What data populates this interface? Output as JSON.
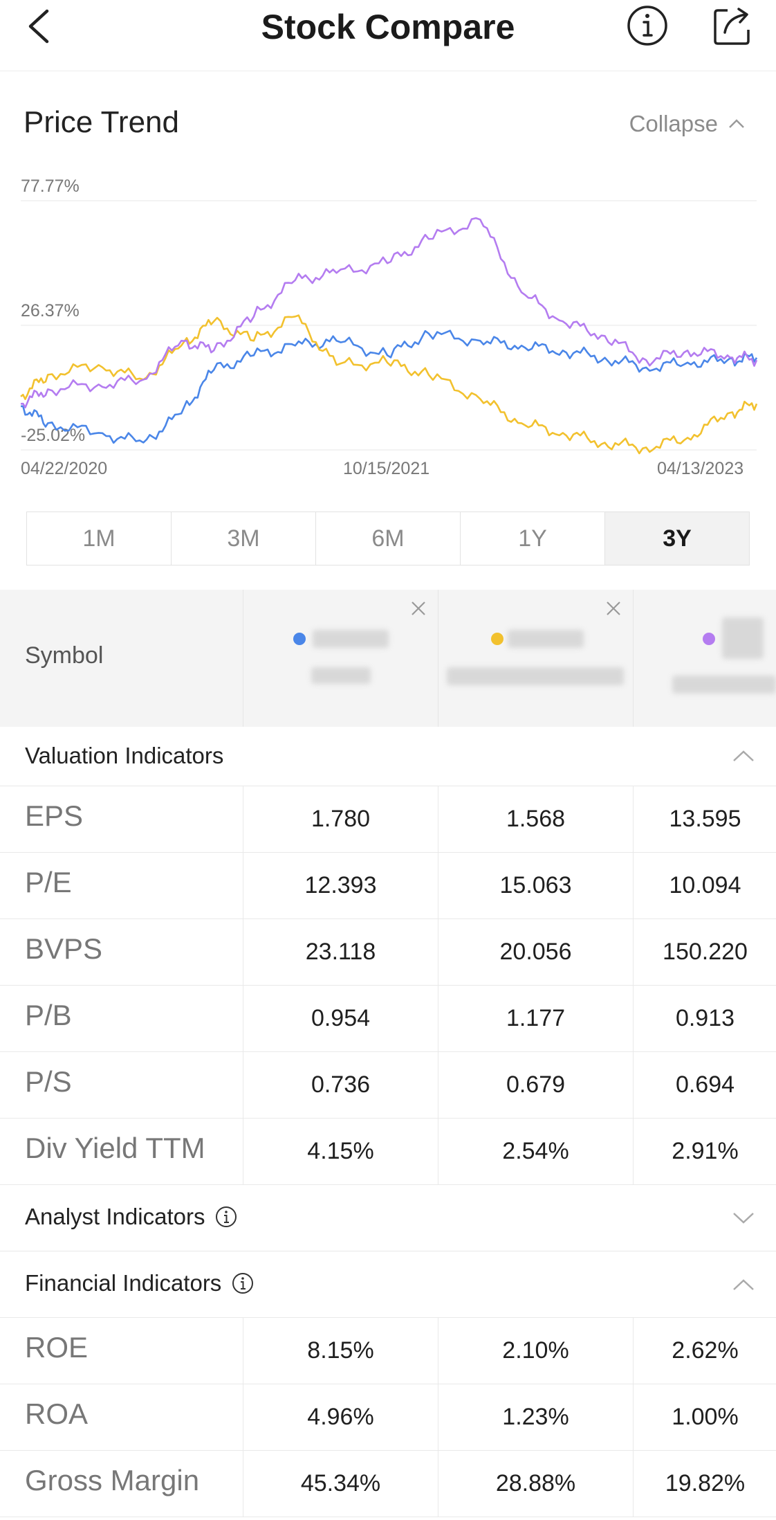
{
  "header": {
    "title": "Stock Compare",
    "back_icon": "back-arrow-icon",
    "info_icon": "info-icon",
    "share_icon": "share-icon"
  },
  "price_trend": {
    "title": "Price Trend",
    "collapse_label": "Collapse"
  },
  "chart_data": {
    "type": "line",
    "y_tick_labels": [
      "77.77%",
      "26.37%",
      "-25.02%"
    ],
    "y_ticks": [
      77.77,
      26.37,
      -25.02
    ],
    "x_tick_labels": [
      "04/22/2020",
      "10/15/2021",
      "04/13/2023"
    ],
    "x_range": [
      "04/22/2020",
      "04/13/2023"
    ],
    "ylim": [
      -25.02,
      77.77
    ],
    "grid": true,
    "series": [
      {
        "color": "#4a86e8",
        "x": [
          "04/22/2020",
          "06/01/2020",
          "08/15/2020",
          "10/20/2020",
          "12/15/2020",
          "02/01/2021",
          "04/01/2021",
          "06/01/2021",
          "08/01/2021",
          "10/15/2021",
          "12/15/2021",
          "03/01/2022",
          "05/01/2022",
          "07/01/2022",
          "09/01/2022",
          "11/01/2022",
          "01/01/2023",
          "03/01/2023",
          "04/13/2023"
        ],
        "values": [
          -7,
          -14,
          -18,
          -22,
          -10,
          8,
          14,
          18,
          20,
          14,
          23,
          20,
          18,
          16,
          13,
          9,
          11,
          12,
          13
        ]
      },
      {
        "color": "#f2c12e",
        "x": [
          "04/22/2020",
          "06/01/2020",
          "08/15/2020",
          "10/20/2020",
          "12/15/2020",
          "02/01/2021",
          "04/01/2021",
          "06/01/2021",
          "08/01/2021",
          "10/15/2021",
          "12/15/2021",
          "03/01/2022",
          "05/01/2022",
          "07/01/2022",
          "09/01/2022",
          "11/01/2022",
          "01/01/2023",
          "03/01/2023",
          "04/13/2023"
        ],
        "values": [
          -3,
          6,
          10,
          4,
          18,
          28,
          20,
          30,
          10,
          11,
          6,
          -4,
          -14,
          -18,
          -22,
          -24,
          -20,
          -10,
          -6
        ]
      },
      {
        "color": "#b47cf0",
        "x": [
          "04/22/2020",
          "06/01/2020",
          "08/15/2020",
          "10/20/2020",
          "12/15/2020",
          "02/01/2021",
          "04/01/2021",
          "06/01/2021",
          "08/01/2021",
          "10/15/2021",
          "12/15/2021",
          "03/01/2022",
          "05/01/2022",
          "07/01/2022",
          "09/01/2022",
          "11/01/2022",
          "01/01/2023",
          "03/01/2023",
          "04/13/2023"
        ],
        "values": [
          -6,
          0,
          2,
          4,
          20,
          16,
          30,
          45,
          48,
          52,
          62,
          70,
          40,
          28,
          22,
          12,
          16,
          14,
          12
        ]
      }
    ]
  },
  "range_tabs": [
    {
      "label": "1M"
    },
    {
      "label": "3M"
    },
    {
      "label": "6M"
    },
    {
      "label": "1Y"
    },
    {
      "label": "3Y",
      "active": true
    }
  ],
  "compare": {
    "symbol_label": "Symbol",
    "symbol_colors": [
      "#4a86e8",
      "#f2c12e",
      "#b47cf0"
    ],
    "valuation": {
      "title": "Valuation Indicators",
      "rows": [
        {
          "label": "EPS",
          "values": [
            "1.780",
            "1.568",
            "13.595"
          ]
        },
        {
          "label": "P/E",
          "values": [
            "12.393",
            "15.063",
            "10.094"
          ]
        },
        {
          "label": "BVPS",
          "values": [
            "23.118",
            "20.056",
            "150.220"
          ]
        },
        {
          "label": "P/B",
          "values": [
            "0.954",
            "1.177",
            "0.913"
          ]
        },
        {
          "label": "P/S",
          "values": [
            "0.736",
            "0.679",
            "0.694"
          ]
        },
        {
          "label": "Div Yield TTM",
          "values": [
            "4.15%",
            "2.54%",
            "2.91%"
          ]
        }
      ]
    },
    "analyst": {
      "title": "Analyst Indicators"
    },
    "financial": {
      "title": "Financial Indicators",
      "rows": [
        {
          "label": "ROE",
          "values": [
            "8.15%",
            "2.10%",
            "2.62%"
          ]
        },
        {
          "label": "ROA",
          "values": [
            "4.96%",
            "1.23%",
            "1.00%"
          ]
        },
        {
          "label": "Gross Margin",
          "values": [
            "45.34%",
            "28.88%",
            "19.82%"
          ]
        }
      ]
    }
  }
}
